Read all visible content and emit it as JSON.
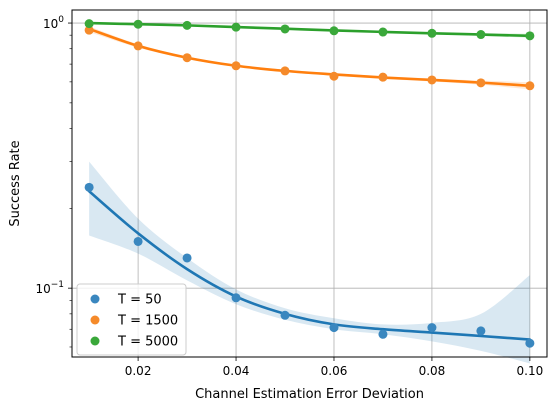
{
  "chart_data": {
    "type": "scatter",
    "title": "",
    "xlabel": "Channel Estimation Error Deviation",
    "ylabel": "Success Rate",
    "xlim": [
      0.0065,
      0.1035
    ],
    "ylim": [
      0.055,
      1.12
    ],
    "yscale": "log",
    "grid": true,
    "legend_position": "lower-left",
    "x_ticks": [
      0.02,
      0.04,
      0.06,
      0.08,
      0.1
    ],
    "x_tick_labels": [
      "0.02",
      "0.04",
      "0.06",
      "0.08",
      "0.10"
    ],
    "y_major_ticks": [
      {
        "value": 1.0,
        "base": "10",
        "exponent": "0"
      },
      {
        "value": 0.1,
        "base": "10",
        "exponent": "−1"
      }
    ],
    "x": [
      0.01,
      0.02,
      0.03,
      0.04,
      0.05,
      0.06,
      0.07,
      0.08,
      0.09,
      0.1
    ],
    "series": [
      {
        "name": "T = 50",
        "color": "#1f77b4",
        "marker_color": "#3a87bf",
        "values": [
          0.24,
          0.15,
          0.13,
          0.092,
          0.079,
          0.071,
          0.067,
          0.071,
          0.069,
          0.062
        ],
        "fit": [
          0.232,
          0.161,
          0.118,
          0.093,
          0.08,
          0.073,
          0.07,
          0.068,
          0.066,
          0.064
        ],
        "band_lower": [
          0.158,
          0.135,
          0.107,
          0.087,
          0.076,
          0.07,
          0.067,
          0.063,
          0.058,
          0.052
        ],
        "band_upper": [
          0.3,
          0.183,
          0.13,
          0.099,
          0.084,
          0.077,
          0.073,
          0.074,
          0.08,
          0.112
        ]
      },
      {
        "name": "T = 1500",
        "color": "#ff7f0e",
        "marker_color": "#f58a2a",
        "values": [
          0.94,
          0.82,
          0.74,
          0.69,
          0.66,
          0.63,
          0.625,
          0.61,
          0.595,
          0.58
        ],
        "fit": [
          0.95,
          0.82,
          0.74,
          0.69,
          0.66,
          0.64,
          0.623,
          0.61,
          0.596,
          0.58
        ],
        "band_lower": [
          0.925,
          0.808,
          0.732,
          0.684,
          0.653,
          0.633,
          0.616,
          0.602,
          0.585,
          0.562
        ],
        "band_upper": [
          0.972,
          0.832,
          0.748,
          0.696,
          0.667,
          0.647,
          0.63,
          0.618,
          0.607,
          0.598
        ]
      },
      {
        "name": "T = 5000",
        "color": "#2ca02c",
        "marker_color": "#3aa83a",
        "values": [
          0.995,
          0.99,
          0.98,
          0.965,
          0.95,
          0.935,
          0.925,
          0.915,
          0.905,
          0.895
        ],
        "fit": [
          1.0,
          0.99,
          0.98,
          0.966,
          0.952,
          0.938,
          0.926,
          0.915,
          0.905,
          0.895
        ],
        "band_lower": [
          0.99,
          0.984,
          0.974,
          0.961,
          0.948,
          0.934,
          0.921,
          0.908,
          0.895,
          0.88
        ],
        "band_upper": [
          1.01,
          0.996,
          0.986,
          0.971,
          0.957,
          0.943,
          0.932,
          0.923,
          0.916,
          0.912
        ]
      }
    ]
  }
}
